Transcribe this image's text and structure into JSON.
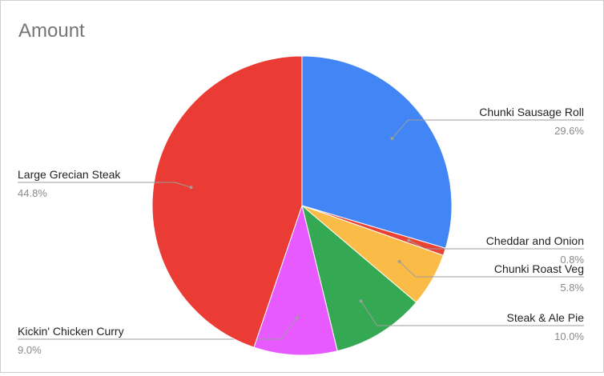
{
  "chart_data": {
    "type": "pie",
    "title": "Amount",
    "slices": [
      {
        "label": "Chunki Sausage Roll",
        "value": 29.6,
        "value_label": "29.6%",
        "color": "#4285f4"
      },
      {
        "label": "Cheddar and Onion",
        "value": 0.8,
        "value_label": "0.8%",
        "color": "#ea4335"
      },
      {
        "label": "Chunki Roast Veg",
        "value": 5.8,
        "value_label": "5.8%",
        "color": "#fbbc47"
      },
      {
        "label": "Steak & Ale Pie",
        "value": 10.0,
        "value_label": "10.0%",
        "color": "#34a853"
      },
      {
        "label": "Kickin' Chicken Curry",
        "value": 9.0,
        "value_label": "9.0%",
        "color": "#e75aff"
      },
      {
        "label": "Large Grecian Steak",
        "value": 44.8,
        "value_label": "44.8%",
        "color": "#ea3b35"
      }
    ],
    "legend": "none",
    "data_labels": "outside with leader lines"
  }
}
